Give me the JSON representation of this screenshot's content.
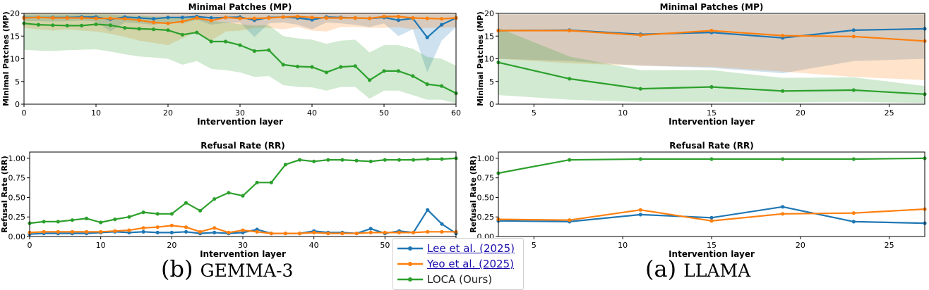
{
  "figure": {
    "caption_left_prefix": "(b) ",
    "caption_left_sc": "Gemma-3",
    "caption_right_prefix": "(a) ",
    "caption_right_sc": "Llama",
    "colors": {
      "lee": "#1f77b4",
      "yeo": "#ff7f0e",
      "loca": "#2ca02c"
    }
  },
  "legend": {
    "entries": [
      {
        "label": "Lee et al. (2025)",
        "color": "#1f77b4",
        "link": true
      },
      {
        "label": "Yeo et al. (2025)",
        "color": "#ff7f0e",
        "link": true
      },
      {
        "label": "LOCA (Ours)",
        "color": "#2ca02c",
        "link": false
      }
    ]
  },
  "chart_data": [
    {
      "type": "line",
      "id": "gemma_mp",
      "title": "Minimal Patches (MP)",
      "xlabel": "Intervention layer",
      "ylabel": "Minimal Patches (MP)",
      "xlim": [
        0,
        60
      ],
      "ylim": [
        0,
        20
      ],
      "xticks": [
        0,
        10,
        20,
        30,
        40,
        50,
        60
      ],
      "yticks": [
        0,
        5,
        10,
        15,
        20
      ],
      "x": [
        0,
        2,
        4,
        6,
        8,
        10,
        12,
        14,
        16,
        18,
        20,
        22,
        24,
        26,
        28,
        30,
        32,
        34,
        36,
        38,
        40,
        42,
        44,
        46,
        48,
        50,
        52,
        54,
        56,
        58,
        60
      ],
      "series": [
        {
          "name": "Lee et al. (2025)",
          "color": "#1f77b4",
          "values": [
            19.1,
            19.1,
            19.1,
            19.1,
            19.2,
            19.2,
            18.7,
            19.2,
            19.0,
            18.8,
            19.1,
            19.1,
            19.3,
            19.0,
            19.1,
            19.2,
            18.5,
            19.1,
            19.2,
            19.0,
            18.6,
            19.2,
            19.1,
            19.0,
            18.9,
            19.1,
            18.5,
            18.9,
            14.7,
            17.5,
            19.0
          ],
          "band_low": [
            18.3,
            18.3,
            18.2,
            18.3,
            18.4,
            18.2,
            16.0,
            18.0,
            17.8,
            17.5,
            18.0,
            17.8,
            18.6,
            17.5,
            17.9,
            18.0,
            14.8,
            17.8,
            18.0,
            17.5,
            16.5,
            18.0,
            17.8,
            17.5,
            17.0,
            17.8,
            15.0,
            16.5,
            7.0,
            14.0,
            17.0
          ],
          "band_high": [
            19.8,
            19.8,
            19.8,
            19.8,
            19.9,
            19.8,
            19.8,
            19.9,
            19.8,
            19.8,
            19.8,
            19.8,
            19.9,
            19.8,
            19.8,
            19.9,
            19.8,
            19.8,
            19.9,
            19.8,
            19.8,
            19.9,
            19.8,
            19.8,
            19.8,
            19.8,
            19.8,
            19.8,
            19.8,
            19.8,
            19.8
          ]
        },
        {
          "name": "Yeo et al. (2025)",
          "color": "#ff7f0e",
          "values": [
            19.0,
            19.1,
            19.0,
            19.0,
            19.0,
            18.9,
            18.9,
            18.8,
            18.5,
            18.0,
            17.8,
            18.2,
            19.0,
            18.4,
            19.1,
            18.9,
            18.9,
            19.0,
            19.2,
            19.3,
            19.1,
            19.0,
            19.0,
            19.0,
            18.9,
            19.3,
            19.3,
            19.0,
            18.9,
            18.8,
            19.0
          ],
          "band_low": [
            16.8,
            16.5,
            16.2,
            16.5,
            16.2,
            16.0,
            15.5,
            14.8,
            14.0,
            13.5,
            13.0,
            14.5,
            16.0,
            14.0,
            16.0,
            16.2,
            16.8,
            16.8,
            16.5,
            17.0,
            16.2,
            16.0,
            17.0,
            17.0,
            16.8,
            16.8,
            17.0,
            16.5,
            16.8,
            16.8,
            17.0
          ],
          "band_high": [
            19.9,
            19.9,
            19.9,
            19.9,
            19.9,
            19.9,
            19.9,
            19.9,
            19.9,
            19.9,
            19.9,
            19.9,
            19.9,
            19.9,
            19.9,
            19.9,
            19.9,
            19.9,
            19.9,
            19.9,
            19.9,
            19.9,
            19.9,
            19.9,
            19.9,
            19.9,
            19.9,
            19.9,
            19.9,
            19.9,
            19.9
          ]
        },
        {
          "name": "LOCA (Ours)",
          "color": "#2ca02c",
          "values": [
            17.8,
            17.5,
            17.4,
            17.3,
            17.3,
            17.6,
            17.4,
            16.8,
            16.6,
            16.5,
            16.3,
            15.3,
            15.8,
            13.8,
            13.8,
            13.0,
            11.7,
            11.9,
            8.7,
            8.3,
            8.2,
            7.0,
            8.2,
            8.4,
            5.3,
            7.3,
            7.3,
            6.2,
            4.4,
            4.0,
            2.4
          ],
          "band_low": [
            12.0,
            11.8,
            11.7,
            11.9,
            12.0,
            12.1,
            11.6,
            11.0,
            10.5,
            10.3,
            10.0,
            8.7,
            9.5,
            7.8,
            7.5,
            7.0,
            6.0,
            6.2,
            4.2,
            3.8,
            3.7,
            3.0,
            3.8,
            3.8,
            1.2,
            3.0,
            3.0,
            2.0,
            1.0,
            1.0,
            0.2
          ],
          "band_high": [
            19.8,
            19.8,
            19.8,
            19.8,
            19.8,
            19.8,
            19.8,
            19.5,
            19.5,
            19.3,
            19.3,
            18.9,
            19.3,
            18.3,
            18.1,
            17.6,
            17.3,
            17.4,
            15.0,
            14.5,
            14.2,
            13.3,
            14.0,
            14.2,
            11.4,
            13.0,
            13.0,
            12.2,
            10.4,
            10.0,
            8.5
          ]
        }
      ]
    },
    {
      "type": "line",
      "id": "gemma_rr",
      "title": "Refusal Rate (RR)",
      "xlabel": "Intervention layer",
      "ylabel": "Refusal Rate (RR)",
      "xlim": [
        0,
        60
      ],
      "ylim": [
        0,
        1.08
      ],
      "xticks": [
        0,
        10,
        20,
        30,
        40,
        50,
        60
      ],
      "yticks": [
        0.0,
        0.25,
        0.5,
        0.75,
        1.0
      ],
      "x": [
        0,
        2,
        4,
        6,
        8,
        10,
        12,
        14,
        16,
        18,
        20,
        22,
        24,
        26,
        28,
        30,
        32,
        34,
        36,
        38,
        40,
        42,
        44,
        46,
        48,
        50,
        52,
        54,
        56,
        58,
        60
      ],
      "series": [
        {
          "name": "Lee et al. (2025)",
          "color": "#1f77b4",
          "values": [
            0.03,
            0.04,
            0.04,
            0.04,
            0.04,
            0.05,
            0.06,
            0.05,
            0.06,
            0.05,
            0.05,
            0.06,
            0.04,
            0.05,
            0.04,
            0.05,
            0.09,
            0.04,
            0.04,
            0.04,
            0.07,
            0.05,
            0.05,
            0.04,
            0.1,
            0.04,
            0.07,
            0.05,
            0.34,
            0.16,
            0.04
          ]
        },
        {
          "name": "Yeo et al. (2025)",
          "color": "#ff7f0e",
          "values": [
            0.05,
            0.06,
            0.06,
            0.06,
            0.06,
            0.06,
            0.07,
            0.08,
            0.11,
            0.12,
            0.14,
            0.12,
            0.06,
            0.11,
            0.05,
            0.08,
            0.06,
            0.04,
            0.04,
            0.04,
            0.05,
            0.04,
            0.04,
            0.04,
            0.05,
            0.05,
            0.05,
            0.05,
            0.06,
            0.06,
            0.06
          ]
        },
        {
          "name": "LOCA (Ours)",
          "color": "#2ca02c",
          "values": [
            0.17,
            0.19,
            0.19,
            0.21,
            0.23,
            0.18,
            0.22,
            0.25,
            0.31,
            0.29,
            0.29,
            0.43,
            0.33,
            0.48,
            0.56,
            0.52,
            0.69,
            0.69,
            0.92,
            0.98,
            0.96,
            0.98,
            0.98,
            0.97,
            0.96,
            0.98,
            0.98,
            0.98,
            0.99,
            0.99,
            1.0
          ]
        }
      ]
    },
    {
      "type": "line",
      "id": "llama_mp",
      "title": "Minimal Patches (MP)",
      "xlabel": "Intervention layer",
      "ylabel": "Minimal Patches (MP)",
      "xlim": [
        3,
        27
      ],
      "ylim": [
        0,
        20
      ],
      "xticks": [
        5,
        10,
        15,
        20,
        25
      ],
      "yticks": [
        0,
        5,
        10,
        15,
        20
      ],
      "x": [
        3,
        7,
        11,
        15,
        19,
        23,
        27
      ],
      "series": [
        {
          "name": "Lee et al. (2025)",
          "color": "#1f77b4",
          "values": [
            16.2,
            16.3,
            15.4,
            15.8,
            14.6,
            16.3,
            16.6
          ],
          "band_low": [
            10.0,
            9.5,
            8.5,
            8.0,
            6.8,
            9.5,
            10.0
          ],
          "band_high": [
            19.8,
            19.8,
            19.8,
            19.8,
            19.8,
            19.8,
            19.8
          ]
        },
        {
          "name": "Yeo et al. (2025)",
          "color": "#ff7f0e",
          "values": [
            16.2,
            16.2,
            15.2,
            16.2,
            15.1,
            14.9,
            13.9
          ],
          "band_low": [
            10.0,
            9.0,
            8.5,
            8.2,
            7.2,
            6.0,
            5.3
          ],
          "band_high": [
            19.8,
            19.8,
            19.8,
            19.8,
            19.8,
            19.8,
            19.8
          ]
        },
        {
          "name": "LOCA (Ours)",
          "color": "#2ca02c",
          "values": [
            9.2,
            5.6,
            3.4,
            3.8,
            2.9,
            3.1,
            2.2
          ],
          "band_low": [
            2.0,
            1.0,
            0.5,
            0.5,
            0.4,
            0.5,
            0.3
          ],
          "band_high": [
            16.8,
            10.5,
            7.5,
            7.5,
            5.8,
            5.9,
            4.0
          ]
        }
      ]
    },
    {
      "type": "line",
      "id": "llama_rr",
      "title": "Refusal Rate (RR)",
      "xlabel": "Intervention layer",
      "ylabel": "Refusal Rate (RR)",
      "xlim": [
        3,
        27
      ],
      "ylim": [
        0,
        1.08
      ],
      "xticks": [
        5,
        10,
        15,
        20,
        25
      ],
      "yticks": [
        0.0,
        0.25,
        0.5,
        0.75,
        1.0
      ],
      "x": [
        3,
        7,
        11,
        15,
        19,
        23,
        27
      ],
      "series": [
        {
          "name": "Lee et al. (2025)",
          "color": "#1f77b4",
          "values": [
            0.2,
            0.19,
            0.28,
            0.24,
            0.38,
            0.19,
            0.17
          ]
        },
        {
          "name": "Yeo et al. (2025)",
          "color": "#ff7f0e",
          "values": [
            0.22,
            0.21,
            0.34,
            0.2,
            0.29,
            0.3,
            0.35
          ]
        },
        {
          "name": "LOCA (Ours)",
          "color": "#2ca02c",
          "values": [
            0.81,
            0.98,
            0.99,
            0.99,
            0.99,
            0.99,
            1.0
          ]
        }
      ]
    }
  ]
}
